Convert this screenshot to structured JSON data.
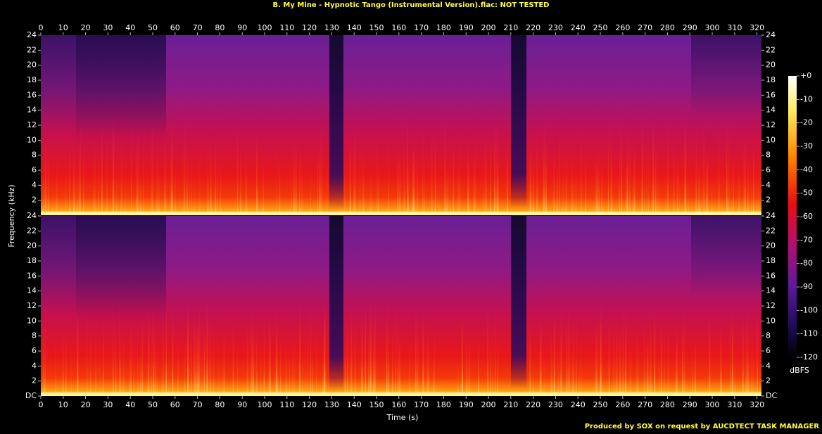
{
  "chart_data": {
    "type": "spectrogram",
    "title": "B. My Mine - Hypnotic Tango (Instrumental Version).flac: NOT TESTED",
    "xlabel": "Time (s)",
    "ylabel": "Frequency (kHz)",
    "xlim": [
      0,
      322
    ],
    "xticks": [
      0,
      10,
      20,
      30,
      40,
      50,
      60,
      70,
      80,
      90,
      100,
      110,
      120,
      130,
      140,
      150,
      160,
      170,
      180,
      190,
      200,
      210,
      220,
      230,
      240,
      250,
      260,
      270,
      280,
      290,
      300,
      310,
      320
    ],
    "channels": [
      {
        "ylim": [
          0,
          24
        ],
        "yticks": [
          2,
          4,
          6,
          8,
          10,
          12,
          14,
          16,
          18,
          20,
          22,
          24
        ]
      },
      {
        "ylim": [
          0,
          24
        ],
        "yticks": [
          {
            "value": 0,
            "label": "DC"
          },
          2,
          4,
          6,
          8,
          10,
          12,
          14,
          16,
          18,
          20,
          22,
          24
        ]
      }
    ],
    "colorbar": {
      "label": "dBFS",
      "lim": [
        -120,
        0
      ],
      "ticks": [
        {
          "value": 0,
          "label": "+0"
        },
        -10,
        -20,
        -30,
        -40,
        -50,
        -60,
        -70,
        -80,
        -90,
        -100,
        -110,
        -120
      ]
    },
    "credit": "Produced by SOX on request by AUCDTECT TASK MANAGER"
  }
}
